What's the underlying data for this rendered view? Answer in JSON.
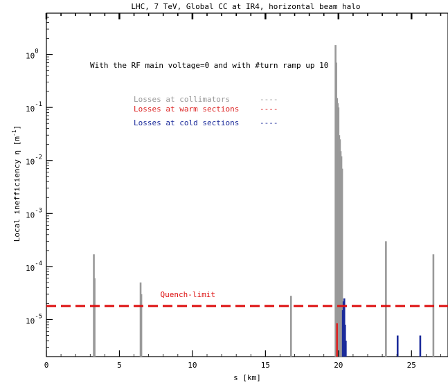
{
  "chart_data": {
    "type": "bar",
    "title": "LHC, 7 TeV, Global CC at IR4, horizontal beam halo",
    "annotation": "With the RF main voltage=0 and with #turn ramp up 10",
    "xlabel": "s [km]",
    "ylabel": "Local inefficiency η [m",
    "ylabel_exponent": "-1",
    "ylabel_close": "]",
    "x_scale": "linear",
    "y_scale": "log",
    "xlim": [
      0,
      27.5
    ],
    "ylim": [
      2e-06,
      6
    ],
    "x_ticks": [
      0,
      5,
      10,
      15,
      20,
      25
    ],
    "x_tick_labels": [
      "0",
      "5",
      "10",
      "15",
      "20",
      "25"
    ],
    "y_ticks": [
      1,
      0.1,
      0.01,
      0.001,
      0.0001,
      1e-05
    ],
    "y_tick_base": "10",
    "y_tick_exponents": [
      "0",
      "-1",
      "-2",
      "-3",
      "-4",
      "-5"
    ],
    "grid": false,
    "legend_position": "upper-left",
    "series": [
      {
        "name": "Losses at collimators",
        "legend_line": "----",
        "color": "#999999",
        "x": [
          3.25,
          3.3,
          6.45,
          6.5,
          16.75,
          19.8,
          19.85,
          19.9,
          19.95,
          20.0,
          20.05,
          20.1,
          20.15,
          20.2,
          20.25,
          23.25,
          26.5
        ],
        "values": [
          0.00017,
          6e-05,
          5e-05,
          3e-05,
          2.8e-05,
          1.5,
          0.7,
          0.15,
          0.12,
          0.1,
          0.03,
          0.025,
          0.015,
          0.012,
          0.007,
          0.0003,
          0.00017
        ]
      },
      {
        "name": "Losses at warm sections",
        "legend_line": "----",
        "color": "#dd2222",
        "x": [
          19.9
        ],
        "values": [
          8.5e-06
        ]
      },
      {
        "name": "Losses at cold sections",
        "legend_line": "----",
        "color": "#1a2a9a",
        "x": [
          20.3,
          20.35,
          20.4,
          20.45,
          20.5,
          24.05,
          25.6
        ],
        "values": [
          1.5e-05,
          2.2e-05,
          2.5e-05,
          8e-06,
          4e-06,
          5e-06,
          5e-06
        ]
      }
    ],
    "threshold": {
      "label": "Quench-limit",
      "value": 1.8e-05,
      "color": "#dd1111"
    }
  }
}
